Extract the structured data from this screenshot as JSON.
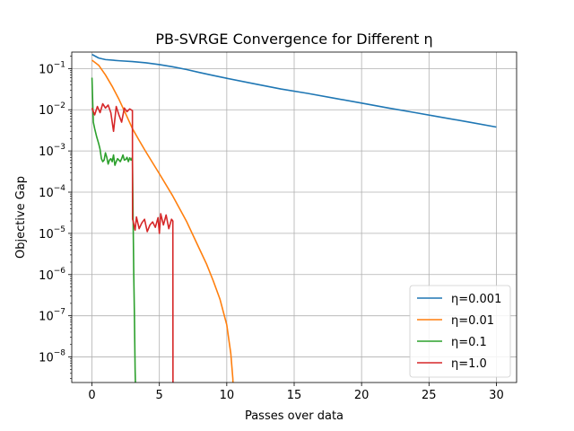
{
  "chart_data": {
    "type": "line",
    "title": "PB-SVRGE Convergence for Different η",
    "xlabel": "Passes over data",
    "ylabel": "Objective Gap",
    "xlim": [
      -1.5,
      31.5
    ],
    "ylim_log10": [
      -8.62,
      -0.6
    ],
    "yscale": "log",
    "grid": true,
    "legend_position": "lower-right",
    "x_ticks": [
      0,
      5,
      10,
      15,
      20,
      25,
      30
    ],
    "y_tick_exponents": [
      -1,
      -2,
      -3,
      -4,
      -5,
      -6,
      -7,
      -8
    ],
    "series": [
      {
        "name": "η=0.001",
        "color": "#1f77b4",
        "x": [
          0,
          0.5,
          1,
          2,
          3,
          4,
          5,
          6,
          7,
          8,
          9,
          10,
          12,
          14,
          16,
          18,
          20,
          22,
          24,
          26,
          28,
          30
        ],
        "y": [
          0.22,
          0.18,
          0.165,
          0.155,
          0.148,
          0.138,
          0.125,
          0.11,
          0.095,
          0.08,
          0.068,
          0.058,
          0.043,
          0.032,
          0.025,
          0.019,
          0.0145,
          0.011,
          0.0085,
          0.0065,
          0.005,
          0.0038
        ]
      },
      {
        "name": "η=0.01",
        "color": "#ff7f0e",
        "x": [
          0,
          0.5,
          1,
          1.5,
          2,
          2.5,
          3,
          3.5,
          4,
          5,
          6,
          7,
          8,
          8.5,
          9,
          9.5,
          10,
          10.3,
          10.45,
          10.5
        ],
        "y": [
          0.16,
          0.12,
          0.07,
          0.037,
          0.018,
          0.008,
          0.0035,
          0.0018,
          0.00095,
          0.00028,
          8e-05,
          2e-05,
          4e-06,
          1.8e-06,
          7e-07,
          2.5e-07,
          6e-08,
          1.2e-08,
          3e-09,
          1e-09
        ]
      },
      {
        "name": "η=0.1",
        "color": "#2ca02c",
        "x": [
          0,
          0.1,
          0.2,
          0.35,
          0.5,
          0.6,
          0.7,
          0.8,
          0.9,
          1.0,
          1.1,
          1.2,
          1.3,
          1.4,
          1.5,
          1.6,
          1.7,
          1.8,
          1.9,
          2.0,
          2.1,
          2.2,
          2.3,
          2.4,
          2.5,
          2.6,
          2.7,
          2.8,
          2.9,
          3.0,
          3.1,
          3.15,
          3.2,
          3.25
        ],
        "y": [
          0.06,
          0.005,
          0.0035,
          0.0022,
          0.0015,
          0.0011,
          0.00065,
          0.00055,
          0.0006,
          0.0009,
          0.0007,
          0.00048,
          0.0006,
          0.00065,
          0.00055,
          0.0008,
          0.00045,
          0.00055,
          0.00065,
          0.0006,
          0.00055,
          0.00065,
          0.0008,
          0.0006,
          0.00062,
          0.0007,
          0.00055,
          0.00068,
          0.0006,
          0.0007,
          1e-06,
          1e-07,
          5e-09,
          1e-09
        ]
      },
      {
        "name": "η=1.0",
        "color": "#d62728",
        "x": [
          0,
          0.2,
          0.4,
          0.6,
          0.8,
          1.0,
          1.2,
          1.4,
          1.6,
          1.8,
          2.0,
          2.2,
          2.4,
          2.6,
          2.8,
          3.0,
          3.01,
          3.05,
          3.2,
          3.3,
          3.5,
          3.7,
          3.9,
          4.1,
          4.3,
          4.5,
          4.7,
          4.9,
          5.0,
          5.1,
          5.3,
          5.5,
          5.7,
          5.9,
          6.0,
          6.01
        ],
        "y": [
          0.011,
          0.0075,
          0.012,
          0.0085,
          0.014,
          0.011,
          0.013,
          0.0085,
          0.003,
          0.012,
          0.0075,
          0.005,
          0.011,
          0.009,
          0.0105,
          0.0095,
          2.2e-05,
          2e-05,
          1.2e-05,
          2.5e-05,
          1.3e-05,
          1.8e-05,
          2.2e-05,
          1.1e-05,
          1.6e-05,
          1.9e-05,
          1.4e-05,
          2.4e-05,
          1e-05,
          3e-05,
          1.6e-05,
          2.8e-05,
          1.3e-05,
          2.2e-05,
          2e-05,
          1e-09
        ]
      }
    ]
  }
}
